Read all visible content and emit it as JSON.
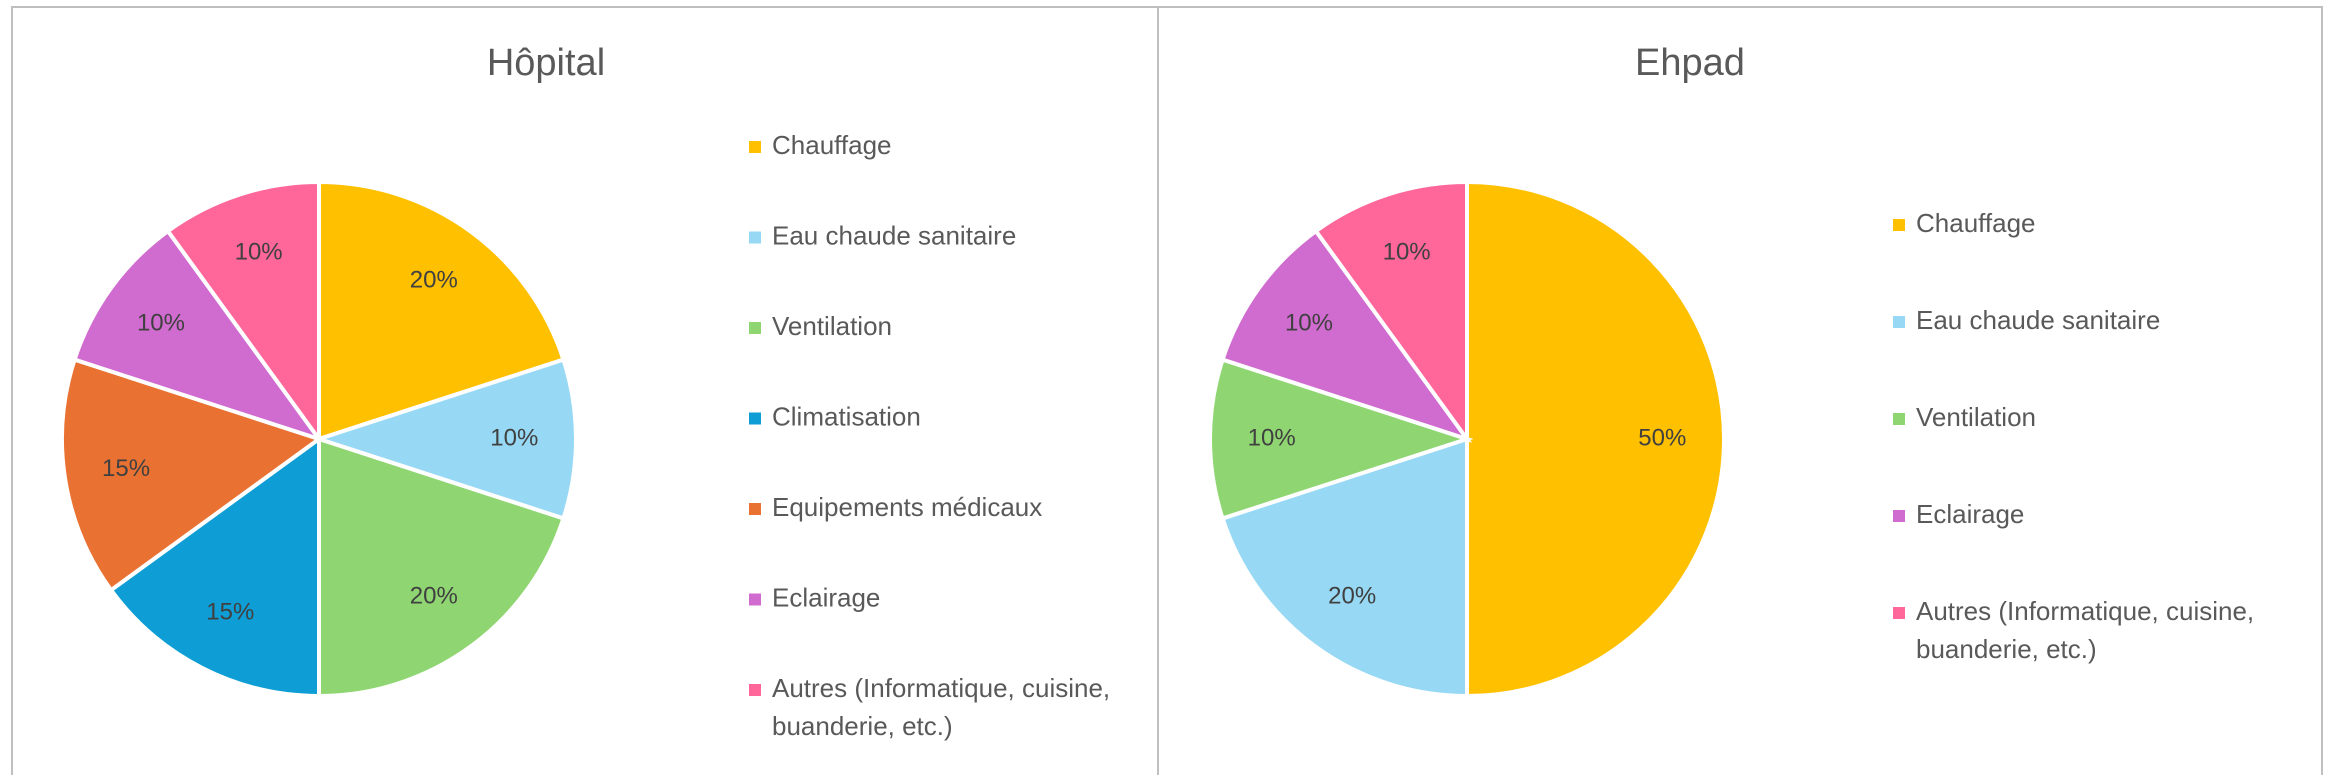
{
  "chart_data": [
    {
      "type": "pie",
      "title": "Hôpital",
      "categories": [
        "Chauffage",
        "Eau chaude sanitaire",
        "Ventilation",
        "Climatisation",
        "Equipements médicaux",
        "Eclairage",
        "Autres (Informatique, cuisine, buanderie, etc.)"
      ],
      "values": [
        20,
        10,
        20,
        15,
        15,
        10,
        10
      ],
      "value_labels": [
        "20%",
        "10%",
        "20%",
        "15%",
        "15%",
        "10%",
        "10%"
      ],
      "colors": [
        "#ffc000",
        "#97d9f5",
        "#8fd672",
        "#0e9ed5",
        "#e97132",
        "#d06bcf",
        "#ff6699"
      ]
    },
    {
      "type": "pie",
      "title": "Ehpad",
      "categories": [
        "Chauffage",
        "Eau chaude sanitaire",
        "Ventilation",
        "Eclairage",
        "Autres (Informatique, cuisine, buanderie, etc.)"
      ],
      "values": [
        50,
        20,
        10,
        10,
        10
      ],
      "value_labels": [
        "50%",
        "20%",
        "10%",
        "10%",
        "10%"
      ],
      "colors": [
        "#ffc000",
        "#97d9f5",
        "#8fd672",
        "#d06bcf",
        "#ff6699"
      ]
    }
  ]
}
